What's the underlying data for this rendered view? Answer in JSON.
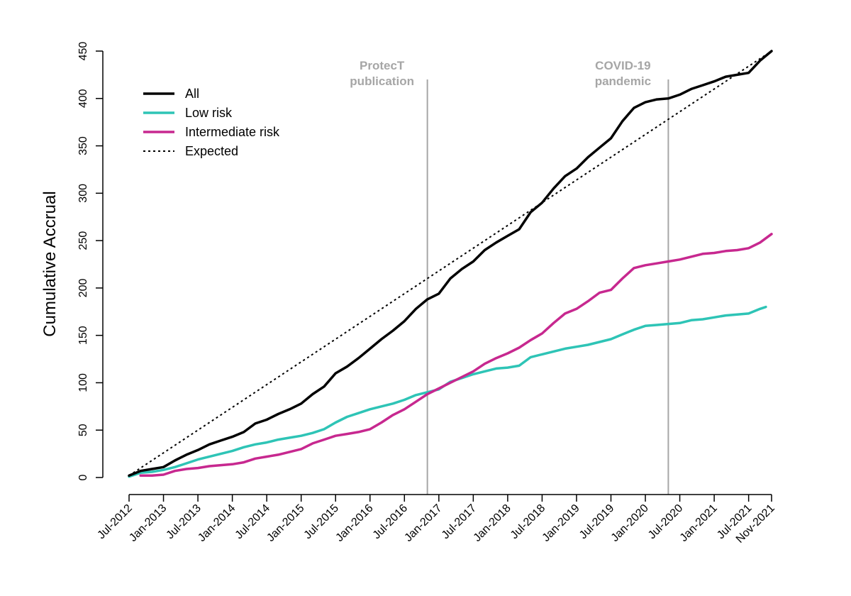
{
  "chart_data": {
    "type": "line",
    "title": "",
    "ylabel": "Cumulative Accrual",
    "xlabel": "",
    "ylim": [
      0,
      450
    ],
    "y_ticks": [
      0,
      50,
      100,
      150,
      200,
      250,
      300,
      350,
      400,
      450
    ],
    "x_range": [
      "2012-07",
      "2021-11"
    ],
    "x_ticks": [
      {
        "date": "2012-07",
        "label": "Jul-2012"
      },
      {
        "date": "2013-01",
        "label": "Jan-2013"
      },
      {
        "date": "2013-07",
        "label": "Jul-2013"
      },
      {
        "date": "2014-01",
        "label": "Jan-2014"
      },
      {
        "date": "2014-07",
        "label": "Jul-2014"
      },
      {
        "date": "2015-01",
        "label": "Jan-2015"
      },
      {
        "date": "2015-07",
        "label": "Jul-2015"
      },
      {
        "date": "2016-01",
        "label": "Jan-2016"
      },
      {
        "date": "2016-07",
        "label": "Jul-2016"
      },
      {
        "date": "2017-01",
        "label": "Jan-2017"
      },
      {
        "date": "2017-07",
        "label": "Jul-2017"
      },
      {
        "date": "2018-01",
        "label": "Jan-2018"
      },
      {
        "date": "2018-07",
        "label": "Jul-2018"
      },
      {
        "date": "2019-01",
        "label": "Jan-2019"
      },
      {
        "date": "2019-07",
        "label": "Jul-2019"
      },
      {
        "date": "2020-01",
        "label": "Jan-2020"
      },
      {
        "date": "2020-07",
        "label": "Jul-2020"
      },
      {
        "date": "2021-01",
        "label": "Jan-2021"
      },
      {
        "date": "2021-07",
        "label": "Jul-2021"
      },
      {
        "date": "2021-11",
        "label": "Nov-2021"
      }
    ],
    "grid": false,
    "legend_position": "top-left",
    "legend": [
      {
        "label": "All",
        "color": "#000000",
        "style": "solid"
      },
      {
        "label": "Low risk",
        "color": "#2ec4b6",
        "style": "solid"
      },
      {
        "label": "Intermediate risk",
        "color": "#c7288f",
        "style": "solid"
      },
      {
        "label": "Expected",
        "color": "#000000",
        "style": "dotted"
      }
    ],
    "annotations": [
      {
        "date": "2016-11",
        "lines": [
          "ProtecT",
          "publication"
        ],
        "color": "#a6a6a6"
      },
      {
        "date": "2020-05",
        "lines": [
          "COVID-19",
          "pandemic"
        ],
        "color": "#a6a6a6"
      }
    ],
    "series": [
      {
        "name": "All",
        "color": "#000000",
        "points": [
          [
            "2012-07",
            2
          ],
          [
            "2012-09",
            7
          ],
          [
            "2012-11",
            9
          ],
          [
            "2013-01",
            11
          ],
          [
            "2013-03",
            18
          ],
          [
            "2013-05",
            24
          ],
          [
            "2013-07",
            29
          ],
          [
            "2013-09",
            35
          ],
          [
            "2013-11",
            39
          ],
          [
            "2014-01",
            43
          ],
          [
            "2014-03",
            48
          ],
          [
            "2014-05",
            57
          ],
          [
            "2014-07",
            61
          ],
          [
            "2014-09",
            67
          ],
          [
            "2014-11",
            72
          ],
          [
            "2015-01",
            78
          ],
          [
            "2015-03",
            88
          ],
          [
            "2015-05",
            96
          ],
          [
            "2015-07",
            110
          ],
          [
            "2015-09",
            117
          ],
          [
            "2015-11",
            126
          ],
          [
            "2016-01",
            136
          ],
          [
            "2016-03",
            146
          ],
          [
            "2016-05",
            155
          ],
          [
            "2016-07",
            165
          ],
          [
            "2016-09",
            178
          ],
          [
            "2016-11",
            188
          ],
          [
            "2017-01",
            194
          ],
          [
            "2017-03",
            210
          ],
          [
            "2017-05",
            220
          ],
          [
            "2017-07",
            228
          ],
          [
            "2017-09",
            240
          ],
          [
            "2017-11",
            248
          ],
          [
            "2018-01",
            255
          ],
          [
            "2018-03",
            262
          ],
          [
            "2018-05",
            280
          ],
          [
            "2018-07",
            290
          ],
          [
            "2018-09",
            305
          ],
          [
            "2018-11",
            318
          ],
          [
            "2019-01",
            326
          ],
          [
            "2019-03",
            338
          ],
          [
            "2019-05",
            348
          ],
          [
            "2019-07",
            358
          ],
          [
            "2019-09",
            376
          ],
          [
            "2019-11",
            390
          ],
          [
            "2020-01",
            396
          ],
          [
            "2020-03",
            399
          ],
          [
            "2020-05",
            400
          ],
          [
            "2020-07",
            404
          ],
          [
            "2020-09",
            410
          ],
          [
            "2020-11",
            414
          ],
          [
            "2021-01",
            418
          ],
          [
            "2021-03",
            423
          ],
          [
            "2021-05",
            425
          ],
          [
            "2021-07",
            427
          ],
          [
            "2021-09",
            440
          ],
          [
            "2021-11",
            450
          ]
        ]
      },
      {
        "name": "Low risk",
        "color": "#2ec4b6",
        "points": [
          [
            "2012-07",
            1
          ],
          [
            "2012-09",
            5
          ],
          [
            "2012-11",
            6
          ],
          [
            "2013-01",
            8
          ],
          [
            "2013-03",
            11
          ],
          [
            "2013-05",
            15
          ],
          [
            "2013-07",
            19
          ],
          [
            "2013-09",
            22
          ],
          [
            "2013-11",
            25
          ],
          [
            "2014-01",
            28
          ],
          [
            "2014-03",
            32
          ],
          [
            "2014-05",
            35
          ],
          [
            "2014-07",
            37
          ],
          [
            "2014-09",
            40
          ],
          [
            "2014-11",
            42
          ],
          [
            "2015-01",
            44
          ],
          [
            "2015-03",
            47
          ],
          [
            "2015-05",
            51
          ],
          [
            "2015-07",
            58
          ],
          [
            "2015-09",
            64
          ],
          [
            "2015-11",
            68
          ],
          [
            "2016-01",
            72
          ],
          [
            "2016-03",
            75
          ],
          [
            "2016-05",
            78
          ],
          [
            "2016-07",
            82
          ],
          [
            "2016-09",
            87
          ],
          [
            "2016-11",
            90
          ],
          [
            "2017-01",
            93
          ],
          [
            "2017-03",
            101
          ],
          [
            "2017-05",
            105
          ],
          [
            "2017-07",
            109
          ],
          [
            "2017-09",
            112
          ],
          [
            "2017-11",
            115
          ],
          [
            "2018-01",
            116
          ],
          [
            "2018-03",
            118
          ],
          [
            "2018-05",
            127
          ],
          [
            "2018-07",
            130
          ],
          [
            "2018-09",
            133
          ],
          [
            "2018-11",
            136
          ],
          [
            "2019-01",
            138
          ],
          [
            "2019-03",
            140
          ],
          [
            "2019-05",
            143
          ],
          [
            "2019-07",
            146
          ],
          [
            "2019-09",
            151
          ],
          [
            "2019-11",
            156
          ],
          [
            "2020-01",
            160
          ],
          [
            "2020-03",
            161
          ],
          [
            "2020-05",
            162
          ],
          [
            "2020-07",
            163
          ],
          [
            "2020-09",
            166
          ],
          [
            "2020-11",
            167
          ],
          [
            "2021-01",
            169
          ],
          [
            "2021-03",
            171
          ],
          [
            "2021-05",
            172
          ],
          [
            "2021-07",
            173
          ],
          [
            "2021-09",
            178
          ],
          [
            "2021-10",
            180
          ]
        ]
      },
      {
        "name": "Intermediate risk",
        "color": "#c7288f",
        "points": [
          [
            "2012-09",
            2
          ],
          [
            "2012-11",
            2
          ],
          [
            "2013-01",
            3
          ],
          [
            "2013-03",
            7
          ],
          [
            "2013-05",
            9
          ],
          [
            "2013-07",
            10
          ],
          [
            "2013-09",
            12
          ],
          [
            "2013-11",
            13
          ],
          [
            "2014-01",
            14
          ],
          [
            "2014-03",
            16
          ],
          [
            "2014-05",
            20
          ],
          [
            "2014-07",
            22
          ],
          [
            "2014-09",
            24
          ],
          [
            "2014-11",
            27
          ],
          [
            "2015-01",
            30
          ],
          [
            "2015-03",
            36
          ],
          [
            "2015-05",
            40
          ],
          [
            "2015-07",
            44
          ],
          [
            "2015-09",
            46
          ],
          [
            "2015-11",
            48
          ],
          [
            "2016-01",
            51
          ],
          [
            "2016-03",
            58
          ],
          [
            "2016-05",
            66
          ],
          [
            "2016-07",
            72
          ],
          [
            "2016-09",
            80
          ],
          [
            "2016-11",
            88
          ],
          [
            "2017-01",
            94
          ],
          [
            "2017-03",
            100
          ],
          [
            "2017-05",
            106
          ],
          [
            "2017-07",
            112
          ],
          [
            "2017-09",
            120
          ],
          [
            "2017-11",
            126
          ],
          [
            "2018-01",
            131
          ],
          [
            "2018-03",
            137
          ],
          [
            "2018-05",
            145
          ],
          [
            "2018-07",
            152
          ],
          [
            "2018-09",
            163
          ],
          [
            "2018-11",
            173
          ],
          [
            "2019-01",
            178
          ],
          [
            "2019-03",
            186
          ],
          [
            "2019-05",
            195
          ],
          [
            "2019-07",
            198
          ],
          [
            "2019-09",
            210
          ],
          [
            "2019-11",
            221
          ],
          [
            "2020-01",
            224
          ],
          [
            "2020-03",
            226
          ],
          [
            "2020-05",
            228
          ],
          [
            "2020-07",
            230
          ],
          [
            "2020-09",
            233
          ],
          [
            "2020-11",
            236
          ],
          [
            "2021-01",
            237
          ],
          [
            "2021-03",
            239
          ],
          [
            "2021-05",
            240
          ],
          [
            "2021-07",
            242
          ],
          [
            "2021-09",
            248
          ],
          [
            "2021-11",
            257
          ]
        ]
      },
      {
        "name": "Expected",
        "color": "#000000",
        "style": "dotted",
        "points": [
          [
            "2012-07",
            2
          ],
          [
            "2021-11",
            450
          ]
        ]
      }
    ]
  }
}
